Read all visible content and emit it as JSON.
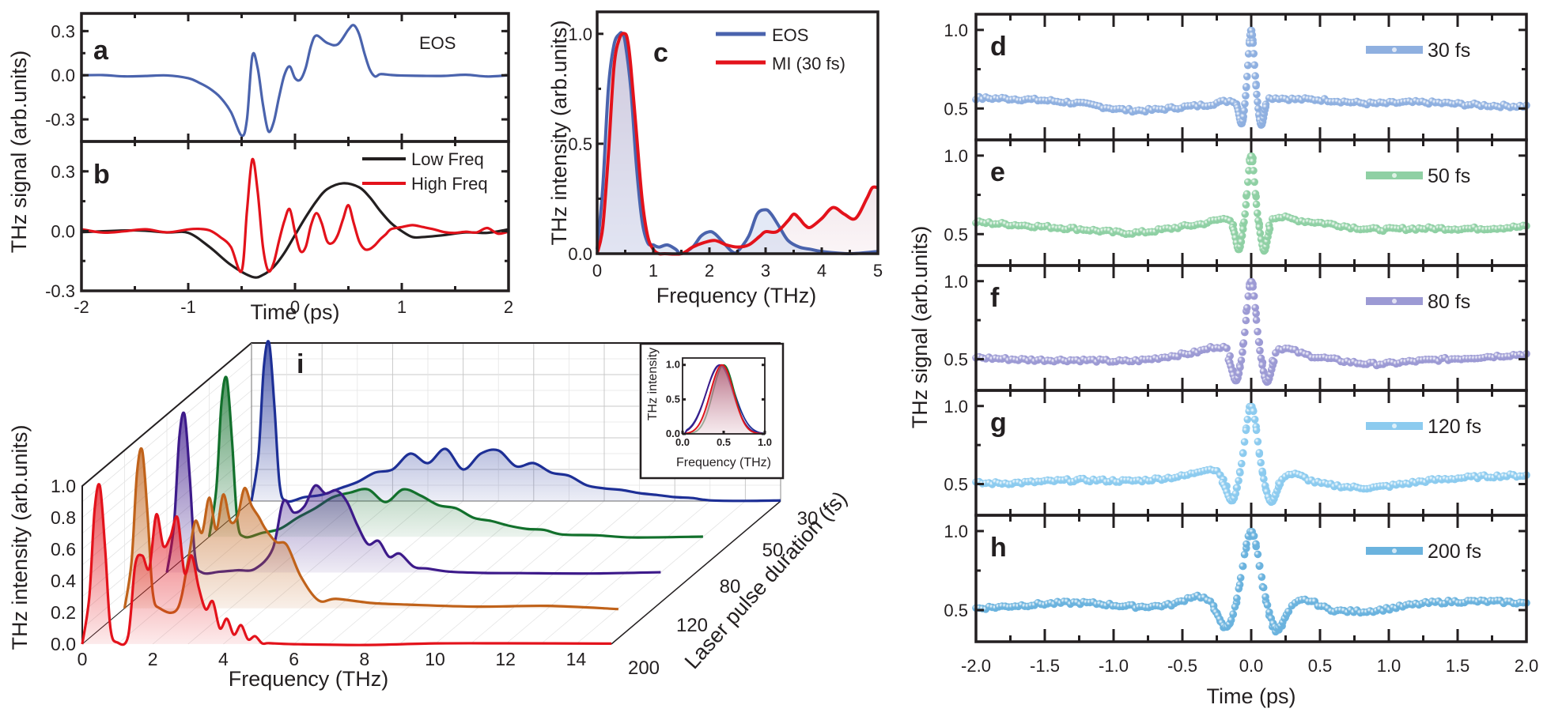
{
  "figure": {
    "colors": {
      "eos_blue": "#4a63ad",
      "red": "#e3121b",
      "black": "#231f20",
      "d_30fs": "#8fb0e0",
      "e_50fs": "#8fd0a4",
      "f_80fs": "#9c9ad4",
      "g_120fs": "#8ccbef",
      "h_200fs": "#6bb3de",
      "i_30": "#1d2f96",
      "i_50": "#12702c",
      "i_80": "#3d1a8a",
      "i_120": "#c0621a",
      "i_200": "#e3121b"
    }
  },
  "chart_data": [
    {
      "id": "a",
      "type": "line",
      "panel_letter": "a",
      "annotation": "EOS",
      "xlabel": "Time (ps)",
      "ylabel": "THz signal (arb.units)",
      "xlim": [
        -2,
        2
      ],
      "ylim": [
        -0.45,
        0.42
      ],
      "yticks": [
        "0.3",
        "0.0",
        "-0.3"
      ],
      "ytick_values": [
        0.3,
        0.0,
        -0.3
      ],
      "series": [
        {
          "name": "EOS",
          "color": "#4a63ad",
          "x": [
            -2.0,
            -1.8,
            -1.6,
            -1.4,
            -1.2,
            -1.0,
            -0.9,
            -0.8,
            -0.7,
            -0.6,
            -0.5,
            -0.45,
            -0.4,
            -0.35,
            -0.3,
            -0.25,
            -0.2,
            -0.15,
            -0.1,
            -0.05,
            0.0,
            0.05,
            0.1,
            0.15,
            0.2,
            0.3,
            0.4,
            0.5,
            0.55,
            0.6,
            0.65,
            0.7,
            0.75,
            0.8,
            0.9,
            1.0,
            1.2,
            1.4,
            1.6,
            1.8,
            2.0
          ],
          "y": [
            0.0,
            0.0,
            0.0,
            0.0,
            0.0,
            -0.02,
            -0.05,
            -0.09,
            -0.15,
            -0.25,
            -0.41,
            -0.3,
            0.13,
            0.05,
            -0.2,
            -0.38,
            -0.32,
            -0.15,
            0.0,
            0.06,
            -0.02,
            -0.03,
            0.05,
            0.2,
            0.27,
            0.22,
            0.21,
            0.31,
            0.34,
            0.28,
            0.15,
            0.04,
            0.0,
            0.0,
            0.0,
            0.0,
            0.0,
            -0.01,
            0.0,
            0.0,
            0.0
          ]
        }
      ]
    },
    {
      "id": "b",
      "type": "line",
      "panel_letter": "b",
      "xlabel": "Time (ps)",
      "ylabel": "THz signal (arb.units)",
      "xlim": [
        -2,
        2
      ],
      "ylim": [
        -0.3,
        0.45
      ],
      "xticks": [
        "-2",
        "-1",
        "0",
        "1",
        "2"
      ],
      "xtick_values": [
        -2,
        -1,
        0,
        1,
        2
      ],
      "yticks": [
        "0.3",
        "0.0",
        "-0.3"
      ],
      "ytick_values": [
        0.3,
        0.0,
        -0.3
      ],
      "legend": [
        "Low Freq",
        "High Freq"
      ],
      "legend_position": "top-right",
      "series": [
        {
          "name": "Low Freq",
          "color": "#231f20",
          "x": [
            -2.0,
            -1.5,
            -1.2,
            -1.0,
            -0.8,
            -0.6,
            -0.4,
            -0.3,
            -0.2,
            -0.1,
            0.0,
            0.1,
            0.2,
            0.3,
            0.45,
            0.6,
            0.7,
            0.8,
            0.9,
            1.0,
            1.1,
            1.2,
            1.4,
            1.6,
            1.8,
            2.0
          ],
          "y": [
            0.0,
            0.0,
            0.0,
            -0.01,
            -0.08,
            -0.17,
            -0.23,
            -0.22,
            -0.18,
            -0.11,
            -0.02,
            0.07,
            0.15,
            0.21,
            0.24,
            0.22,
            0.17,
            0.1,
            0.04,
            0.0,
            -0.03,
            -0.03,
            -0.02,
            0.0,
            0.0,
            0.0
          ]
        },
        {
          "name": "High Freq",
          "color": "#e3121b",
          "x": [
            -2.0,
            -1.8,
            -1.6,
            -1.4,
            -1.2,
            -1.0,
            -0.9,
            -0.8,
            -0.7,
            -0.6,
            -0.5,
            -0.45,
            -0.4,
            -0.35,
            -0.3,
            -0.25,
            -0.2,
            -0.15,
            -0.1,
            -0.05,
            0.0,
            0.05,
            0.1,
            0.15,
            0.2,
            0.25,
            0.3,
            0.35,
            0.4,
            0.45,
            0.5,
            0.55,
            0.6,
            0.65,
            0.7,
            0.75,
            0.8,
            0.85,
            0.9,
            1.0,
            1.1,
            1.2,
            1.3,
            1.4,
            1.5,
            1.6,
            1.7,
            1.8,
            1.9,
            2.0
          ],
          "y": [
            0.0,
            0.0,
            0.0,
            0.0,
            0.0,
            0.01,
            0.01,
            0.0,
            -0.03,
            -0.08,
            -0.2,
            0.1,
            0.36,
            0.2,
            -0.08,
            -0.2,
            -0.16,
            -0.05,
            0.05,
            0.11,
            0.0,
            -0.1,
            -0.08,
            0.03,
            0.09,
            0.04,
            -0.05,
            -0.06,
            -0.02,
            0.06,
            0.13,
            0.04,
            -0.05,
            -0.09,
            -0.09,
            -0.07,
            -0.04,
            -0.01,
            0.0,
            0.02,
            0.03,
            0.02,
            0.01,
            0.0,
            -0.01,
            0.0,
            0.0,
            0.01,
            -0.01,
            0.0
          ]
        }
      ]
    },
    {
      "id": "c",
      "type": "area",
      "panel_letter": "c",
      "xlabel": "Frequency (THz)",
      "ylabel": "THz intensity (arb.units)",
      "xlim": [
        0,
        5
      ],
      "ylim": [
        0,
        1.1
      ],
      "xticks": [
        "0",
        "1",
        "2",
        "3",
        "4",
        "5"
      ],
      "xtick_values": [
        0,
        1,
        2,
        3,
        4,
        5
      ],
      "yticks": [
        "1.0",
        "0.5",
        "0.0"
      ],
      "ytick_values": [
        1.0,
        0.5,
        0.0
      ],
      "legend": [
        "EOS",
        "MI (30 fs)"
      ],
      "legend_position": "top-right",
      "series": [
        {
          "name": "EOS",
          "color": "#4a63ad",
          "x": [
            0.0,
            0.1,
            0.2,
            0.3,
            0.4,
            0.45,
            0.5,
            0.6,
            0.7,
            0.8,
            0.9,
            1.0,
            1.1,
            1.25,
            1.4,
            1.5,
            1.7,
            1.85,
            2.0,
            2.1,
            2.25,
            2.4,
            2.5,
            2.7,
            2.85,
            3.0,
            3.1,
            3.25,
            3.4,
            3.6,
            3.8,
            4.0,
            4.5,
            5.0
          ],
          "y": [
            0.02,
            0.3,
            0.75,
            0.95,
            1.0,
            1.0,
            0.96,
            0.75,
            0.4,
            0.15,
            0.05,
            0.04,
            0.03,
            0.04,
            0.02,
            0.0,
            0.03,
            0.08,
            0.1,
            0.09,
            0.05,
            0.01,
            0.01,
            0.08,
            0.18,
            0.2,
            0.18,
            0.12,
            0.06,
            0.03,
            0.02,
            0.01,
            0.0,
            0.01
          ]
        },
        {
          "name": "MI (30 fs)",
          "color": "#e3121b",
          "x": [
            0.0,
            0.1,
            0.2,
            0.3,
            0.4,
            0.5,
            0.55,
            0.6,
            0.7,
            0.8,
            0.9,
            1.0,
            1.1,
            1.2,
            1.5,
            1.7,
            1.9,
            2.1,
            2.3,
            2.5,
            2.7,
            2.9,
            3.0,
            3.2,
            3.4,
            3.5,
            3.6,
            3.7,
            3.8,
            4.0,
            4.2,
            4.4,
            4.6,
            4.8,
            4.9,
            5.0
          ],
          "y": [
            0.0,
            0.12,
            0.45,
            0.85,
            0.98,
            1.0,
            0.96,
            0.85,
            0.55,
            0.25,
            0.08,
            0.02,
            0.0,
            0.0,
            0.0,
            0.03,
            0.05,
            0.06,
            0.04,
            0.03,
            0.04,
            0.08,
            0.1,
            0.1,
            0.15,
            0.18,
            0.16,
            0.13,
            0.12,
            0.16,
            0.21,
            0.18,
            0.16,
            0.25,
            0.3,
            0.3
          ]
        }
      ]
    },
    {
      "id": "d-h",
      "type": "scatter",
      "xlabel": "Time (ps)",
      "ylabel": "THz signal (arb.units)",
      "xlim": [
        -2.0,
        2.0
      ],
      "xticks": [
        "-2.0",
        "-1.5",
        "-1.0",
        "-0.5",
        "0.0",
        "0.5",
        "1.0",
        "1.5",
        "2.0"
      ],
      "xtick_values": [
        -2.0,
        -1.5,
        -1.0,
        -0.5,
        0.0,
        0.5,
        1.0,
        1.5,
        2.0
      ],
      "ylim": [
        0.3,
        1.1
      ],
      "yticks": [
        "1.0",
        "0.5"
      ],
      "ytick_values": [
        1.0,
        0.5
      ],
      "panels": [
        {
          "panel_letter": "d",
          "name": "30 fs",
          "color": "#8fb0e0",
          "baseline": 0.54,
          "dip_depth": 0.14,
          "dip_offset": 0.07,
          "dip_width": 0.025,
          "peak_width": 0.03,
          "side_bump": 0.03
        },
        {
          "panel_letter": "e",
          "name": "50 fs",
          "color": "#8fd0a4",
          "baseline": 0.56,
          "dip_depth": 0.16,
          "dip_offset": 0.09,
          "dip_width": 0.03,
          "peak_width": 0.035,
          "side_bump": 0.04
        },
        {
          "panel_letter": "f",
          "name": "80 fs",
          "color": "#9c9ad4",
          "baseline": 0.52,
          "dip_depth": 0.16,
          "dip_offset": 0.11,
          "dip_width": 0.04,
          "peak_width": 0.045,
          "side_bump": 0.06
        },
        {
          "panel_letter": "g",
          "name": "120 fs",
          "color": "#8ccbef",
          "baseline": 0.53,
          "dip_depth": 0.14,
          "dip_offset": 0.14,
          "dip_width": 0.05,
          "peak_width": 0.06,
          "side_bump": 0.08
        },
        {
          "panel_letter": "h",
          "name": "200 fs",
          "color": "#6bb3de",
          "baseline": 0.53,
          "dip_depth": 0.14,
          "dip_offset": 0.18,
          "dip_width": 0.07,
          "peak_width": 0.08,
          "side_bump": 0.1
        }
      ]
    },
    {
      "id": "i",
      "type": "area",
      "panel_letter": "i",
      "subtype": "3d-waterfall",
      "xlabel": "Frequency (THz)",
      "ylabel": "THz intensity (arb.units)",
      "zlabel": "Laser pulse duration (fs)",
      "xlim": [
        0,
        15
      ],
      "xticks": [
        "0",
        "2",
        "4",
        "6",
        "8",
        "10",
        "12",
        "14"
      ],
      "xtick_values": [
        0,
        2,
        4,
        6,
        8,
        10,
        12,
        14
      ],
      "ylim": [
        0,
        1.0
      ],
      "yticks": [
        "1.0",
        "0.8",
        "0.6",
        "0.4",
        "0.2",
        "0.0"
      ],
      "ytick_values": [
        1.0,
        0.8,
        0.6,
        0.4,
        0.2,
        0.0
      ],
      "zticks": [
        "30",
        "50",
        "80",
        "120",
        "200"
      ],
      "series": [
        {
          "name": "200 fs",
          "color": "#e3121b",
          "x": [
            0.0,
            0.2,
            0.35,
            0.5,
            0.65,
            0.8,
            1.0,
            1.3,
            1.5,
            1.7,
            1.9,
            2.1,
            2.3,
            2.5,
            2.7,
            2.9,
            3.1,
            3.3,
            3.5,
            3.7,
            3.9,
            4.1,
            4.3,
            4.5,
            4.7,
            4.9,
            5.1,
            5.3,
            6,
            8,
            10,
            12,
            15
          ],
          "y": [
            0.0,
            0.3,
            0.85,
            1.0,
            0.6,
            0.1,
            0.01,
            0.05,
            0.5,
            0.56,
            0.48,
            0.82,
            0.62,
            0.68,
            0.8,
            0.45,
            0.56,
            0.36,
            0.22,
            0.27,
            0.1,
            0.16,
            0.06,
            0.12,
            0.03,
            0.05,
            0.0,
            0.0,
            0.0,
            0.0,
            0.0,
            0.0,
            0.0
          ]
        },
        {
          "name": "120 fs",
          "color": "#c0621a",
          "x": [
            0.0,
            0.2,
            0.35,
            0.5,
            0.65,
            0.8,
            1.0,
            1.5,
            1.8,
            2.0,
            2.2,
            2.4,
            2.6,
            2.8,
            3.0,
            3.2,
            3.4,
            3.6,
            3.8,
            4.0,
            4.3,
            4.6,
            5.0,
            5.5,
            6,
            7,
            8,
            10,
            12,
            14
          ],
          "y": [
            0.0,
            0.3,
            0.85,
            1.0,
            0.6,
            0.1,
            0.0,
            0.0,
            0.3,
            0.55,
            0.48,
            0.7,
            0.5,
            0.72,
            0.55,
            0.58,
            0.76,
            0.65,
            0.58,
            0.5,
            0.42,
            0.4,
            0.2,
            0.05,
            0.06,
            0.03,
            0.02,
            0.01,
            0.01,
            0.0
          ]
        },
        {
          "name": "80 fs",
          "color": "#3d1a8a",
          "x": [
            0.0,
            0.2,
            0.35,
            0.5,
            0.65,
            0.8,
            1.0,
            1.5,
            2.0,
            2.5,
            3.0,
            3.3,
            3.6,
            3.9,
            4.2,
            4.5,
            4.8,
            5.1,
            5.4,
            5.7,
            6.0,
            6.3,
            6.6,
            7.0,
            7.4,
            8,
            9,
            10,
            12,
            14
          ],
          "y": [
            0.0,
            0.3,
            0.85,
            1.0,
            0.6,
            0.1,
            0.0,
            0.01,
            0.02,
            0.02,
            0.15,
            0.45,
            0.38,
            0.42,
            0.55,
            0.5,
            0.52,
            0.45,
            0.3,
            0.18,
            0.2,
            0.1,
            0.12,
            0.04,
            0.02,
            0.01,
            0.0,
            0.0,
            0.0,
            0.0
          ]
        },
        {
          "name": "50 fs",
          "color": "#12702c",
          "x": [
            0.0,
            0.2,
            0.35,
            0.5,
            0.65,
            0.8,
            1.0,
            1.5,
            2.0,
            2.5,
            3.0,
            3.5,
            4.0,
            4.5,
            5.0,
            5.5,
            6.0,
            6.5,
            7.0,
            7.5,
            8.0,
            8.5,
            9.0,
            9.5,
            10.0,
            11,
            12,
            14
          ],
          "y": [
            0.0,
            0.3,
            0.85,
            1.0,
            0.6,
            0.1,
            0.0,
            0.02,
            0.05,
            0.12,
            0.18,
            0.25,
            0.28,
            0.3,
            0.22,
            0.3,
            0.26,
            0.2,
            0.18,
            0.12,
            0.1,
            0.07,
            0.05,
            0.04,
            0.02,
            0.01,
            0.0,
            0.0
          ]
        },
        {
          "name": "30 fs",
          "color": "#1d2f96",
          "x": [
            0.0,
            0.2,
            0.35,
            0.5,
            0.65,
            0.8,
            1.0,
            1.5,
            2.0,
            2.5,
            3.0,
            3.5,
            4.0,
            4.5,
            5.0,
            5.5,
            6.0,
            6.5,
            7.0,
            7.5,
            8.0,
            8.5,
            9.0,
            9.5,
            10.0,
            10.5,
            11.0,
            11.5,
            12.0,
            12.5,
            13.0,
            14,
            15
          ],
          "y": [
            0.0,
            0.3,
            0.85,
            1.0,
            0.6,
            0.1,
            0.0,
            0.02,
            0.04,
            0.08,
            0.12,
            0.18,
            0.2,
            0.3,
            0.24,
            0.33,
            0.2,
            0.3,
            0.32,
            0.22,
            0.24,
            0.18,
            0.16,
            0.1,
            0.08,
            0.07,
            0.05,
            0.04,
            0.03,
            0.02,
            0.01,
            0.0,
            0.0
          ]
        }
      ],
      "inset": {
        "type": "area",
        "xlabel": "Frequency (THz)",
        "ylabel": "THz intensity",
        "xlim": [
          0,
          1.0
        ],
        "ylim": [
          0,
          1.1
        ],
        "xticks": [
          "0.0",
          "0.5",
          "1.0"
        ],
        "xtick_values": [
          0.0,
          0.5,
          1.0
        ],
        "yticks": [
          "1.0",
          "0.5",
          "0.0"
        ],
        "ytick_values": [
          1.0,
          0.5,
          0.0
        ],
        "series": [
          {
            "name": "30 fs",
            "color": "#1d2f96",
            "center": 0.46,
            "sigma": 0.17
          },
          {
            "name": "50 fs",
            "color": "#12702c",
            "center": 0.5,
            "sigma": 0.13
          },
          {
            "name": "80 fs",
            "color": "#3d1a8a",
            "center": 0.45,
            "sigma": 0.16
          },
          {
            "name": "120 fs",
            "color": "#c0621a",
            "center": 0.48,
            "sigma": 0.14
          },
          {
            "name": "200 fs",
            "color": "#e3121b",
            "center": 0.48,
            "sigma": 0.14
          }
        ]
      }
    }
  ]
}
